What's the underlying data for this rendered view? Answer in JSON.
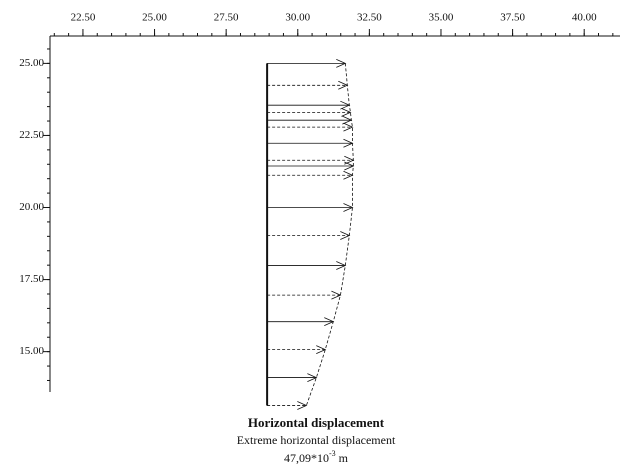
{
  "chart_data": {
    "type": "displacement",
    "title": "Horizontal displacement",
    "subtitle": "Extreme horizontal displacement",
    "extreme_value": {
      "mantissa": "47,09*10",
      "exponent": "-3",
      "unit": "m"
    },
    "wall_x": 28.93,
    "depths": [
      25.0,
      24.24,
      23.55,
      23.3,
      23.03,
      22.79,
      22.23,
      21.64,
      21.44,
      21.12,
      20.0,
      19.03,
      17.99,
      16.96,
      16.04,
      15.07,
      14.1,
      13.13
    ],
    "tips": [
      31.66,
      31.73,
      31.8,
      31.84,
      31.87,
      31.91,
      31.91,
      31.94,
      31.94,
      31.91,
      31.91,
      31.8,
      31.66,
      31.49,
      31.24,
      30.96,
      30.65,
      30.3
    ],
    "xlim": [
      21.35,
      41.25
    ],
    "xticks": [
      {
        "value": 22.5,
        "label": "22.50"
      },
      {
        "value": 25,
        "label": "25.00"
      },
      {
        "value": 27.5,
        "label": "27.50"
      },
      {
        "value": 30,
        "label": "30.00"
      },
      {
        "value": 32.5,
        "label": "32.50"
      },
      {
        "value": 35,
        "label": "35.00"
      },
      {
        "value": 37.5,
        "label": "37.50"
      },
      {
        "value": 40,
        "label": "40.00"
      }
    ],
    "ylim": [
      13.6,
      25.95
    ],
    "yticks": [
      {
        "value": 15,
        "label": "15.00"
      },
      {
        "value": 17.5,
        "label": "17.50"
      },
      {
        "value": 20,
        "label": "20.00"
      },
      {
        "value": 22.5,
        "label": "22.50"
      },
      {
        "value": 25,
        "label": "25.00"
      }
    ],
    "minor_divisions": 5,
    "color": "#111111"
  }
}
